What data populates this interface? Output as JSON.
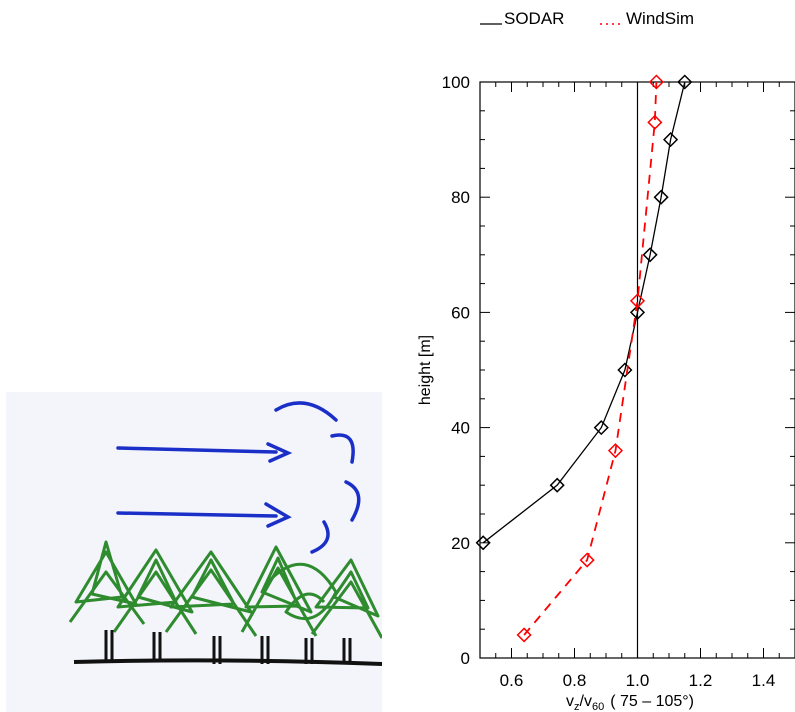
{
  "chart_data": {
    "type": "line",
    "xlabel": "v_z/v_60 ( 75 – 105°)",
    "xlabel_parts": {
      "v": "v",
      "sub_z": "z",
      "slash": "/v",
      "sub_60": "60",
      "rest": "( 75 – 105°)"
    },
    "ylabel": "height [m]",
    "xlim": [
      0.5,
      1.5
    ],
    "ylim": [
      0,
      100
    ],
    "xticks": [
      "0.6",
      "0.8",
      "1.0",
      "1.2",
      "1.4"
    ],
    "yticks": [
      "0",
      "20",
      "40",
      "60",
      "80",
      "100"
    ],
    "reference_line_x": 1.0,
    "legend_position": "top",
    "series": [
      {
        "name": "SODAR",
        "color": "#000000",
        "style": "solid",
        "marker": "diamond",
        "points": [
          {
            "x": 0.51,
            "y": 20
          },
          {
            "x": 0.745,
            "y": 30
          },
          {
            "x": 0.885,
            "y": 40
          },
          {
            "x": 0.96,
            "y": 50
          },
          {
            "x": 1.0,
            "y": 60
          },
          {
            "x": 1.04,
            "y": 70
          },
          {
            "x": 1.075,
            "y": 80
          },
          {
            "x": 1.105,
            "y": 90
          },
          {
            "x": 1.15,
            "y": 100
          }
        ]
      },
      {
        "name": "WindSim",
        "color": "#ff0000",
        "style": "dashed",
        "marker": "diamond",
        "points": [
          {
            "x": 0.64,
            "y": 4
          },
          {
            "x": 0.84,
            "y": 17
          },
          {
            "x": 0.93,
            "y": 36
          },
          {
            "x": 1.0,
            "y": 62
          },
          {
            "x": 1.055,
            "y": 93
          },
          {
            "x": 1.06,
            "y": 100
          }
        ]
      }
    ]
  },
  "legend": {
    "sodar_label": "SODAR",
    "windsim_label": "WindSim"
  },
  "sketch": {
    "description_icon": "forest-wind-sketch-icon",
    "arrow_color": "#1a2fc8",
    "tree_color": "#2e8b2e"
  }
}
